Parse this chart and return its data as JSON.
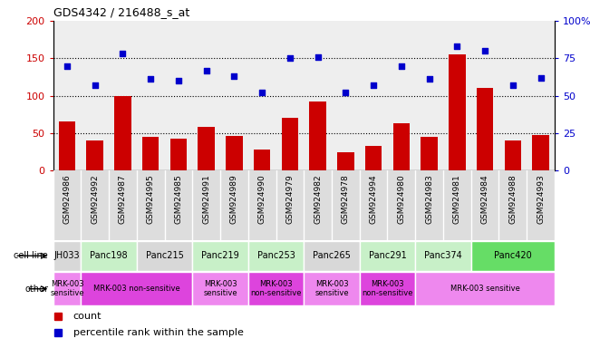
{
  "title": "GDS4342 / 216488_s_at",
  "gsm_labels": [
    "GSM924986",
    "GSM924992",
    "GSM924987",
    "GSM924995",
    "GSM924985",
    "GSM924991",
    "GSM924989",
    "GSM924990",
    "GSM924979",
    "GSM924982",
    "GSM924978",
    "GSM924994",
    "GSM924980",
    "GSM924983",
    "GSM924981",
    "GSM924984",
    "GSM924988",
    "GSM924993"
  ],
  "bar_values": [
    65,
    40,
    100,
    45,
    43,
    58,
    46,
    28,
    70,
    92,
    25,
    33,
    63,
    45,
    155,
    110,
    40,
    48
  ],
  "dot_values": [
    70,
    57,
    78,
    61,
    60,
    67,
    63,
    52,
    75,
    76,
    52,
    57,
    70,
    61,
    83,
    80,
    57,
    62
  ],
  "bar_color": "#cc0000",
  "dot_color": "#0000cc",
  "ylim_left": [
    0,
    200
  ],
  "ylim_right": [
    0,
    100
  ],
  "yticks_left": [
    0,
    50,
    100,
    150,
    200
  ],
  "ytick_labels_right": [
    "0",
    "25",
    "50",
    "75",
    "100%"
  ],
  "bg_color": "#ffffff",
  "col_bg_colors": [
    "#e0e0e0",
    "#e0e0e0",
    "#e0e0e0",
    "#e0e0e0",
    "#e0e0e0",
    "#e0e0e0",
    "#e0e0e0",
    "#e0e0e0",
    "#e0e0e0",
    "#e0e0e0",
    "#e0e0e0",
    "#e0e0e0",
    "#e0e0e0",
    "#e0e0e0",
    "#e0e0e0",
    "#e0e0e0",
    "#e0e0e0",
    "#e0e0e0"
  ],
  "cell_line_groups": [
    {
      "label": "JH033",
      "start": 0,
      "end": 1,
      "color": "#d8d8d8"
    },
    {
      "label": "Panc198",
      "start": 1,
      "end": 3,
      "color": "#c8f0c8"
    },
    {
      "label": "Panc215",
      "start": 3,
      "end": 5,
      "color": "#d8d8d8"
    },
    {
      "label": "Panc219",
      "start": 5,
      "end": 7,
      "color": "#c8f0c8"
    },
    {
      "label": "Panc253",
      "start": 7,
      "end": 9,
      "color": "#c8f0c8"
    },
    {
      "label": "Panc265",
      "start": 9,
      "end": 11,
      "color": "#d8d8d8"
    },
    {
      "label": "Panc291",
      "start": 11,
      "end": 13,
      "color": "#c8f0c8"
    },
    {
      "label": "Panc374",
      "start": 13,
      "end": 15,
      "color": "#c8f0c8"
    },
    {
      "label": "Panc420",
      "start": 15,
      "end": 18,
      "color": "#66dd66"
    }
  ],
  "other_groups": [
    {
      "label": "MRK-003\nsensitive",
      "start": 0,
      "end": 1,
      "color": "#ee88ee"
    },
    {
      "label": "MRK-003 non-sensitive",
      "start": 1,
      "end": 5,
      "color": "#dd44dd"
    },
    {
      "label": "MRK-003\nsensitive",
      "start": 5,
      "end": 7,
      "color": "#ee88ee"
    },
    {
      "label": "MRK-003\nnon-sensitive",
      "start": 7,
      "end": 9,
      "color": "#dd44dd"
    },
    {
      "label": "MRK-003\nsensitive",
      "start": 9,
      "end": 11,
      "color": "#ee88ee"
    },
    {
      "label": "MRK-003\nnon-sensitive",
      "start": 11,
      "end": 13,
      "color": "#dd44dd"
    },
    {
      "label": "MRK-003 sensitive",
      "start": 13,
      "end": 18,
      "color": "#ee88ee"
    }
  ],
  "row_label_cell_line": "cell line",
  "row_label_other": "other",
  "legend_bar": "count",
  "legend_dot": "percentile rank within the sample"
}
